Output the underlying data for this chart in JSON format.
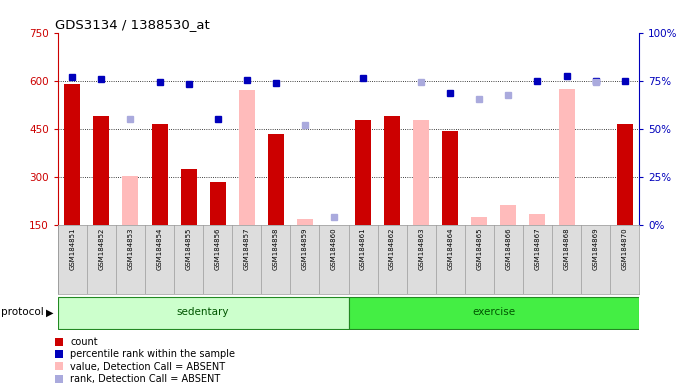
{
  "title": "GDS3134 / 1388530_at",
  "samples": [
    "GSM184851",
    "GSM184852",
    "GSM184853",
    "GSM184854",
    "GSM184855",
    "GSM184856",
    "GSM184857",
    "GSM184858",
    "GSM184859",
    "GSM184860",
    "GSM184861",
    "GSM184862",
    "GSM184863",
    "GSM184864",
    "GSM184865",
    "GSM184866",
    "GSM184867",
    "GSM184868",
    "GSM184869",
    "GSM184870"
  ],
  "count_red": [
    590,
    490,
    null,
    463,
    325,
    283,
    null,
    432,
    null,
    null,
    476,
    491,
    null,
    443,
    null,
    null,
    null,
    null,
    null,
    466
  ],
  "count_pink": [
    null,
    null,
    303,
    null,
    null,
    null,
    572,
    null,
    168,
    null,
    null,
    null,
    477,
    null,
    174,
    210,
    183,
    575,
    null,
    null
  ],
  "rank_blue": [
    610,
    606,
    null,
    595,
    590,
    480,
    602,
    594,
    null,
    null,
    608,
    null,
    null,
    562,
    null,
    null,
    600,
    616,
    600,
    600
  ],
  "rank_lightblue": [
    null,
    null,
    480,
    null,
    null,
    null,
    null,
    null,
    462,
    175,
    null,
    null,
    596,
    null,
    543,
    555,
    null,
    null,
    596,
    null
  ],
  "sedentary_count": 10,
  "ylim_left": [
    150,
    750
  ],
  "ylim_right": [
    0,
    100
  ],
  "yticks_left": [
    150,
    300,
    450,
    600,
    750
  ],
  "yticks_right": [
    0,
    25,
    50,
    75,
    100
  ],
  "ytick_labels_left": [
    "150",
    "300",
    "450",
    "600",
    "750"
  ],
  "ytick_labels_right": [
    "0%",
    "25%",
    "50%",
    "75%",
    "100%"
  ],
  "left_color": "#cc0000",
  "pink_color": "#ffbbbb",
  "blue_color": "#0000bb",
  "lightblue_color": "#aaaadd",
  "sedentary_color": "#ccffcc",
  "exercise_color": "#44ee44",
  "proto_border": "#228822",
  "cell_bg": "#dddddd",
  "legend_labels": [
    "count",
    "percentile rank within the sample",
    "value, Detection Call = ABSENT",
    "rank, Detection Call = ABSENT"
  ]
}
